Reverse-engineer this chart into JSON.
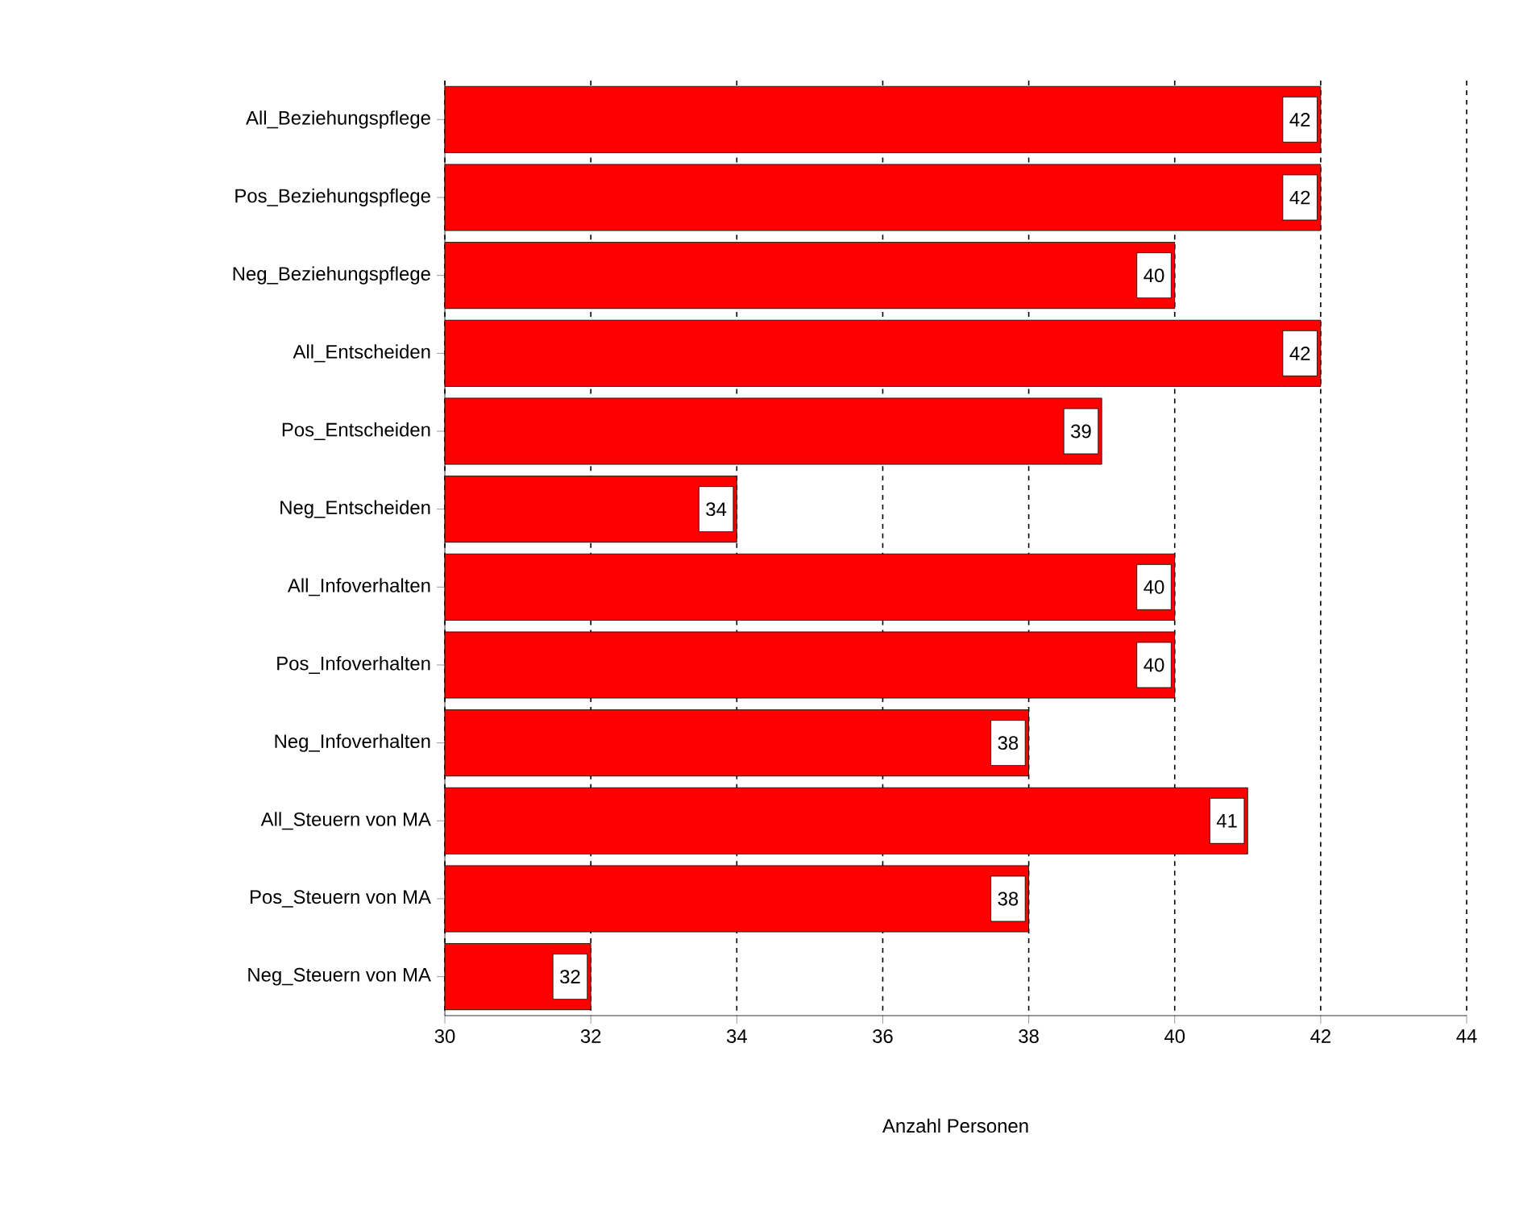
{
  "chart_data": {
    "type": "bar",
    "orientation": "horizontal",
    "xlabel": "Anzahl Personen",
    "categories": [
      "All_Beziehungspflege",
      "Pos_Beziehungspflege",
      "Neg_Beziehungspflege",
      "All_Entscheiden",
      "Pos_Entscheiden",
      "Neg_Entscheiden",
      "All_Infoverhalten",
      "Pos_Infoverhalten",
      "Neg_Infoverhalten",
      "All_Steuern von MA",
      "Pos_Steuern von MA",
      "Neg_Steuern von MA"
    ],
    "values": [
      42,
      42,
      40,
      42,
      39,
      34,
      40,
      40,
      38,
      41,
      38,
      32
    ],
    "color": "#ff0000",
    "xlim": [
      30,
      44
    ],
    "xticks": [
      30,
      32,
      34,
      36,
      38,
      40,
      42,
      44
    ],
    "grid": "x",
    "data_labels": true
  }
}
